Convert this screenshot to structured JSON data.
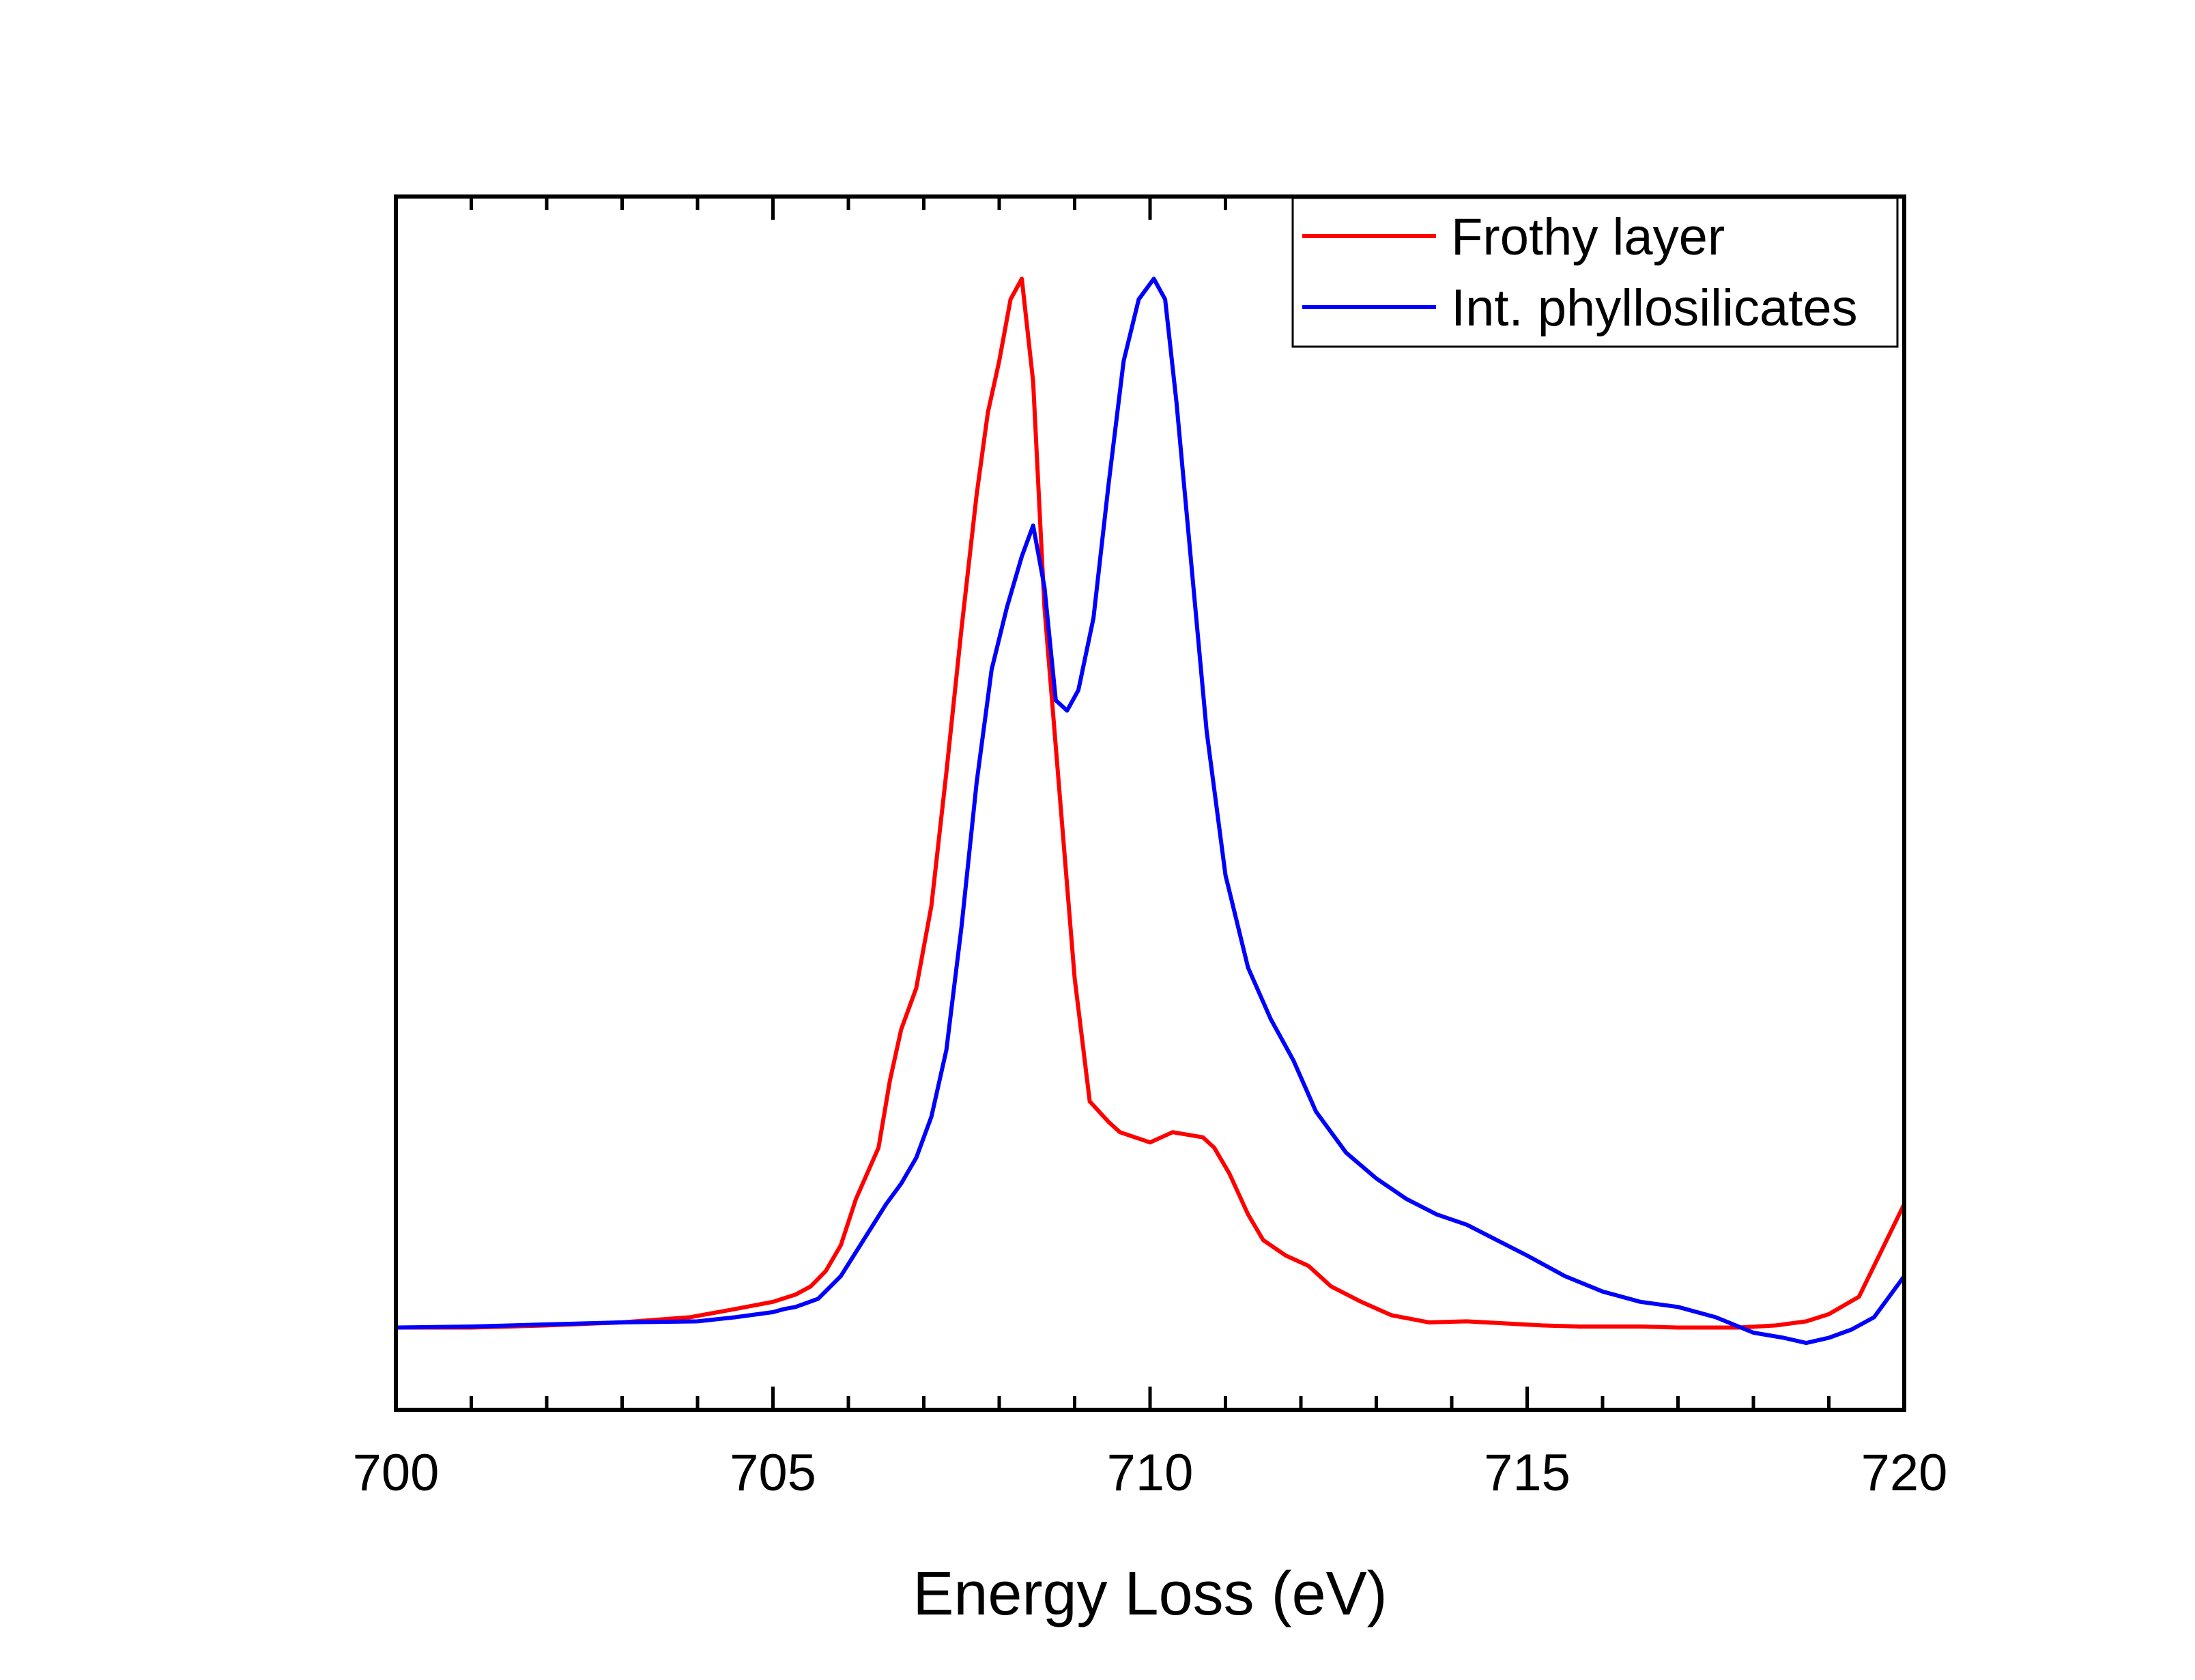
{
  "chart_data": {
    "type": "line",
    "title": "",
    "xlabel": "Energy Loss (eV)",
    "ylabel": "",
    "xlim": [
      700,
      720
    ],
    "ylim": [
      -0.08,
      1.1
    ],
    "grid": false,
    "legend_position": "top-right",
    "y_ticks_labeled": false,
    "x_ticks": [
      700,
      705,
      710,
      715,
      720
    ],
    "x_tick_labels": [
      "700",
      "705",
      "710",
      "715",
      "720"
    ],
    "series": [
      {
        "name": "Frothy layer",
        "color": "#ff0000",
        "x": [
          700,
          701,
          702,
          703,
          703.9,
          704.5,
          705,
          705.3,
          705.5,
          705.7,
          705.9,
          706.1,
          706.4,
          706.55,
          706.7,
          706.9,
          707.1,
          707.3,
          707.5,
          707.7,
          707.85,
          708,
          708.15,
          708.3,
          708.45,
          708.6,
          708.8,
          709,
          709.2,
          709.45,
          709.6,
          709.8,
          710,
          710.3,
          710.7,
          710.85,
          711.05,
          711.3,
          711.5,
          711.8,
          712.1,
          712.4,
          712.8,
          713.2,
          713.7,
          714.2,
          714.7,
          715.2,
          715.7,
          716.5,
          717,
          717.8,
          718.3,
          718.7,
          719,
          719.4,
          720
        ],
        "y": [
          0.0,
          0.0,
          0.002,
          0.005,
          0.01,
          0.018,
          0.025,
          0.032,
          0.04,
          0.055,
          0.08,
          0.125,
          0.175,
          0.24,
          0.29,
          0.33,
          0.41,
          0.54,
          0.68,
          0.81,
          0.89,
          0.94,
          1.0,
          1.02,
          0.92,
          0.7,
          0.52,
          0.34,
          0.22,
          0.2,
          0.19,
          0.185,
          0.18,
          0.19,
          0.185,
          0.175,
          0.15,
          0.11,
          0.085,
          0.07,
          0.06,
          0.04,
          0.025,
          0.012,
          0.005,
          0.006,
          0.004,
          0.002,
          0.001,
          0.001,
          0.0,
          0.0,
          0.002,
          0.006,
          0.013,
          0.03,
          0.12
        ]
      },
      {
        "name": "Int. phyllosilicates",
        "color": "#0000ff",
        "x": [
          700,
          701,
          702,
          703,
          704,
          704.5,
          705,
          705.15,
          705.3,
          705.6,
          705.9,
          706.2,
          706.5,
          706.7,
          706.9,
          707.1,
          707.3,
          707.5,
          707.7,
          707.9,
          708.1,
          708.3,
          708.45,
          708.6,
          708.75,
          708.9,
          709.05,
          709.25,
          709.45,
          709.65,
          709.85,
          710.05,
          710.2,
          710.35,
          710.55,
          710.75,
          711,
          711.3,
          711.6,
          711.9,
          712.2,
          712.6,
          713,
          713.4,
          713.8,
          714.2,
          714.6,
          715,
          715.5,
          716,
          716.5,
          717,
          717.5,
          718,
          718.4,
          718.7,
          719,
          719.3,
          719.6,
          720
        ],
        "y": [
          0.0,
          0.001,
          0.003,
          0.005,
          0.006,
          0.01,
          0.015,
          0.018,
          0.02,
          0.028,
          0.05,
          0.085,
          0.12,
          0.14,
          0.165,
          0.205,
          0.27,
          0.39,
          0.53,
          0.64,
          0.7,
          0.75,
          0.78,
          0.72,
          0.61,
          0.6,
          0.62,
          0.69,
          0.82,
          0.94,
          1.0,
          1.02,
          1.0,
          0.9,
          0.74,
          0.58,
          0.44,
          0.35,
          0.3,
          0.26,
          0.21,
          0.17,
          0.145,
          0.125,
          0.11,
          0.1,
          0.085,
          0.07,
          0.05,
          0.035,
          0.025,
          0.02,
          0.01,
          -0.005,
          -0.01,
          -0.015,
          -0.01,
          -0.002,
          0.01,
          0.05
        ]
      }
    ]
  }
}
